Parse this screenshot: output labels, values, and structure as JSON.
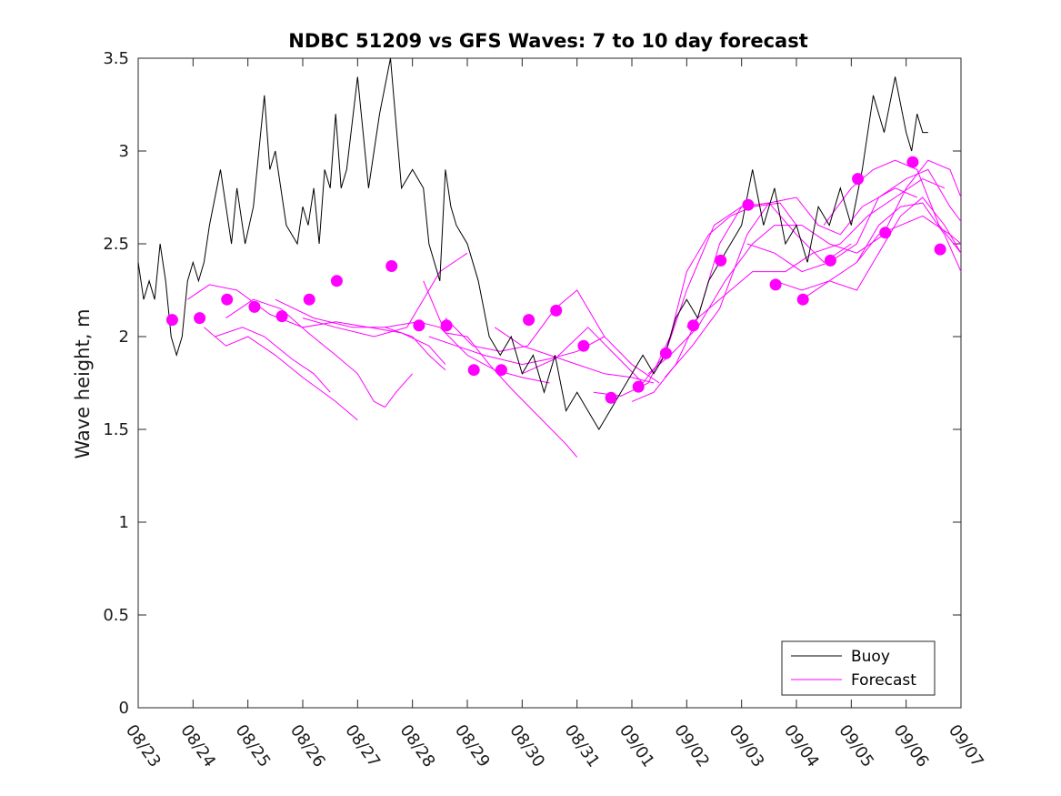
{
  "chart_data": {
    "type": "line",
    "title": "NDBC 51209 vs GFS Waves: 7 to 10 day forecast",
    "xlabel": "",
    "ylabel": "Wave height, m",
    "xlim": [
      0,
      15
    ],
    "ylim": [
      0,
      3.5
    ],
    "x_ticks": [
      0,
      1,
      2,
      3,
      4,
      5,
      6,
      7,
      8,
      9,
      10,
      11,
      12,
      13,
      14,
      15
    ],
    "x_tick_labels": [
      "08/23",
      "08/24",
      "08/25",
      "08/26",
      "08/27",
      "08/28",
      "08/29",
      "08/30",
      "08/31",
      "09/01",
      "09/02",
      "09/03",
      "09/04",
      "09/05",
      "09/06",
      "09/07"
    ],
    "y_ticks": [
      0,
      0.5,
      1,
      1.5,
      2,
      2.5,
      3,
      3.5
    ],
    "y_tick_labels": [
      "0",
      "0.5",
      "1",
      "1.5",
      "2",
      "2.5",
      "3",
      "3.5"
    ],
    "legend": {
      "position": "bottom-right",
      "entries": [
        {
          "label": "Buoy",
          "color": "#000000"
        },
        {
          "label": "Forecast",
          "color": "#ff00ff"
        }
      ]
    },
    "series": [
      {
        "name": "Buoy",
        "color": "#000000",
        "x": [
          0,
          0.1,
          0.2,
          0.3,
          0.4,
          0.5,
          0.6,
          0.7,
          0.8,
          0.9,
          1.0,
          1.1,
          1.2,
          1.3,
          1.5,
          1.7,
          1.8,
          1.95,
          2.1,
          2.3,
          2.4,
          2.5,
          2.7,
          2.9,
          3.0,
          3.1,
          3.2,
          3.3,
          3.4,
          3.5,
          3.6,
          3.7,
          3.8,
          4.0,
          4.2,
          4.3,
          4.4,
          4.6,
          4.8,
          5.0,
          5.2,
          5.3,
          5.5,
          5.6,
          5.7,
          5.8,
          6.0,
          6.2,
          6.4,
          6.6,
          6.8,
          7.0,
          7.2,
          7.4,
          7.6,
          7.8,
          8.0,
          8.2,
          8.4,
          8.6,
          8.8,
          9.0,
          9.2,
          9.4,
          9.6,
          9.8,
          10.0,
          10.2,
          10.4,
          10.6,
          10.8,
          11.0,
          11.2,
          11.4,
          11.6,
          11.8,
          12.0,
          12.2,
          12.4,
          12.6,
          12.8,
          13.0,
          13.2,
          13.4,
          13.6,
          13.8,
          14.0,
          14.1,
          14.2,
          14.3,
          14.4
        ],
        "values": [
          2.4,
          2.2,
          2.3,
          2.2,
          2.5,
          2.3,
          2.0,
          1.9,
          2.0,
          2.3,
          2.4,
          2.3,
          2.4,
          2.6,
          2.9,
          2.5,
          2.8,
          2.5,
          2.7,
          3.3,
          2.9,
          3.0,
          2.6,
          2.5,
          2.7,
          2.6,
          2.8,
          2.5,
          2.9,
          2.8,
          3.2,
          2.8,
          2.9,
          3.4,
          2.8,
          3.0,
          3.2,
          3.5,
          2.8,
          2.9,
          2.8,
          2.5,
          2.3,
          2.9,
          2.7,
          2.6,
          2.5,
          2.3,
          2.0,
          1.9,
          2.0,
          1.8,
          1.9,
          1.7,
          1.9,
          1.6,
          1.7,
          1.6,
          1.5,
          1.6,
          1.7,
          1.8,
          1.9,
          1.8,
          1.9,
          2.1,
          2.2,
          2.1,
          2.3,
          2.4,
          2.5,
          2.6,
          2.9,
          2.6,
          2.8,
          2.5,
          2.6,
          2.4,
          2.7,
          2.6,
          2.8,
          2.6,
          2.9,
          3.3,
          3.1,
          3.4,
          3.1,
          3.0,
          3.2,
          3.1,
          3.1
        ]
      },
      {
        "name": "Forecast",
        "color": "#ff00ff",
        "lines": [
          {
            "x": [
              0.9,
              1.3,
              1.8,
              2.4,
              3.0,
              3.6,
              4.2,
              4.8,
              5.3,
              5.6
            ],
            "values": [
              2.2,
              2.28,
              2.25,
              2.12,
              2.05,
              2.08,
              2.05,
              2.02,
              1.95,
              1.85
            ]
          },
          {
            "x": [
              1.2,
              1.6,
              2.0,
              2.5,
              3.0,
              3.6,
              4.0
            ],
            "values": [
              2.05,
              1.95,
              2.0,
              1.9,
              1.78,
              1.65,
              1.55
            ]
          },
          {
            "x": [
              1.4,
              1.9,
              2.3,
              2.8,
              3.2,
              3.5
            ],
            "values": [
              2.0,
              2.05,
              2.0,
              1.88,
              1.8,
              1.7
            ]
          },
          {
            "x": [
              1.6,
              2.1,
              2.6,
              3.1,
              3.6,
              4.0,
              4.3,
              4.5
            ],
            "values": [
              2.1,
              2.2,
              2.15,
              2.02,
              1.9,
              1.8,
              1.65,
              1.62
            ]
          },
          {
            "x": [
              4.5,
              4.7,
              5.0
            ],
            "values": [
              1.62,
              1.7,
              1.8
            ]
          },
          {
            "x": [
              2.5,
              3.2,
              3.9,
              4.5,
              5.0,
              5.3,
              5.6
            ],
            "values": [
              2.2,
              2.1,
              2.05,
              2.05,
              2.0,
              1.9,
              1.82
            ]
          },
          {
            "x": [
              3.0,
              3.6,
              4.3,
              4.9,
              5.2,
              5.5,
              6.0
            ],
            "values": [
              2.1,
              2.05,
              2.0,
              2.05,
              2.2,
              2.35,
              2.45
            ]
          },
          {
            "x": [
              4.5,
              5.1,
              5.5,
              6.0,
              6.5,
              7.0,
              7.5
            ],
            "values": [
              2.05,
              2.08,
              2.05,
              1.9,
              1.82,
              1.78,
              1.75
            ]
          },
          {
            "x": [
              5.2,
              5.6,
              6.0,
              6.4,
              6.8,
              7.2,
              7.8,
              8.0
            ],
            "values": [
              2.3,
              2.02,
              2.0,
              1.85,
              1.72,
              1.6,
              1.42,
              1.35
            ]
          },
          {
            "x": [
              5.3,
              5.8,
              6.3,
              7.0,
              7.5,
              8.0,
              8.5
            ],
            "values": [
              2.0,
              1.95,
              1.9,
              1.85,
              1.88,
              1.92,
              2.0
            ]
          },
          {
            "x": [
              5.6,
              6.1,
              6.6,
              7.1,
              7.6,
              8.0,
              8.5,
              9.0,
              9.5
            ],
            "values": [
              2.1,
              1.95,
              1.92,
              1.95,
              2.15,
              2.25,
              2.0,
              1.85,
              1.75
            ]
          },
          {
            "x": [
              6.5,
              7.0,
              7.5,
              8.0,
              8.5,
              9.0,
              9.4
            ],
            "values": [
              2.05,
              1.95,
              1.9,
              1.85,
              1.8,
              1.78,
              1.75
            ]
          },
          {
            "x": [
              7.0,
              7.6,
              8.2,
              8.7,
              9.2,
              9.6,
              10.0,
              10.5,
              11.0,
              11.5
            ],
            "values": [
              1.8,
              1.88,
              2.05,
              1.9,
              1.75,
              1.9,
              2.25,
              2.6,
              2.7,
              2.72
            ]
          },
          {
            "x": [
              8.3,
              8.8,
              9.3,
              9.7,
              10.0,
              10.4,
              10.8,
              11.2,
              11.7,
              12.0
            ],
            "values": [
              1.7,
              1.68,
              1.75,
              2.0,
              2.35,
              2.55,
              2.65,
              2.7,
              2.72,
              2.6
            ]
          },
          {
            "x": [
              9.0,
              9.4,
              9.8,
              10.2,
              10.6,
              11.0,
              11.5,
              12.0,
              12.5,
              13.0
            ],
            "values": [
              1.65,
              1.7,
              1.85,
              2.1,
              2.5,
              2.7,
              2.72,
              2.55,
              2.4,
              2.5
            ]
          },
          {
            "x": [
              9.3,
              9.7,
              10.2,
              10.7,
              11.2,
              11.6,
              12.1,
              12.6,
              13.1,
              13.6
            ],
            "values": [
              1.8,
              1.9,
              2.05,
              2.3,
              2.5,
              2.6,
              2.6,
              2.5,
              2.45,
              2.55
            ]
          },
          {
            "x": [
              9.6,
              10.1,
              10.6,
              11.1,
              11.5,
              12.0,
              12.4,
              12.8,
              13.2,
              13.8,
              14.2
            ],
            "values": [
              1.78,
              1.95,
              2.15,
              2.55,
              2.72,
              2.75,
              2.6,
              2.55,
              2.7,
              2.8,
              2.75
            ]
          },
          {
            "x": [
              10.0,
              10.6,
              11.2,
              11.8,
              12.3,
              12.8,
              13.3,
              13.8,
              14.3,
              14.7
            ],
            "values": [
              2.05,
              2.2,
              2.35,
              2.35,
              2.45,
              2.5,
              2.65,
              2.75,
              2.85,
              2.8
            ]
          },
          {
            "x": [
              11.1,
              11.6,
              12.1,
              12.6,
              13.1,
              13.5,
              14.0,
              14.4,
              14.8,
              15.0
            ],
            "values": [
              2.5,
              2.45,
              2.35,
              2.4,
              2.5,
              2.75,
              2.85,
              2.9,
              2.7,
              2.62
            ]
          },
          {
            "x": [
              11.6,
              12.1,
              12.6,
              13.1,
              13.5,
              13.9,
              14.3,
              14.8,
              15.0
            ],
            "values": [
              2.3,
              2.25,
              2.3,
              2.4,
              2.55,
              2.6,
              2.65,
              2.55,
              2.5
            ]
          },
          {
            "x": [
              12.1,
              12.6,
              13.1,
              13.5,
              13.9,
              14.3,
              14.7,
              15.0
            ],
            "values": [
              2.2,
              2.3,
              2.25,
              2.45,
              2.65,
              2.75,
              2.6,
              2.45
            ]
          },
          {
            "x": [
              12.5,
              13.0,
              13.4,
              13.8,
              14.2,
              14.6,
              15.0
            ],
            "values": [
              2.6,
              2.8,
              2.9,
              2.95,
              2.9,
              2.6,
              2.45
            ]
          },
          {
            "x": [
              13.1,
              13.5,
              13.9,
              14.3,
              14.7,
              15.0
            ],
            "values": [
              2.4,
              2.6,
              2.7,
              2.72,
              2.55,
              2.35
            ]
          },
          {
            "x": [
              13.6,
              14.0,
              14.4,
              14.8,
              15.0
            ],
            "values": [
              2.56,
              2.8,
              2.95,
              2.9,
              2.75
            ]
          }
        ],
        "markers": {
          "x": [
            0.62,
            1.12,
            1.62,
            2.12,
            2.62,
            3.12,
            3.62,
            4.62,
            5.12,
            5.62,
            6.12,
            6.62,
            7.12,
            7.62,
            8.12,
            8.62,
            9.12,
            9.62,
            10.12,
            10.62,
            11.12,
            11.62,
            12.12,
            12.62,
            13.12,
            13.62,
            14.12,
            14.62
          ],
          "values": [
            2.09,
            2.1,
            2.2,
            2.16,
            2.11,
            2.2,
            2.3,
            2.38,
            2.06,
            2.06,
            1.82,
            1.82,
            2.09,
            2.14,
            1.95,
            1.67,
            1.73,
            1.91,
            2.06,
            2.41,
            2.71,
            2.28,
            2.2,
            2.41,
            2.85,
            2.56,
            2.94,
            2.47
          ]
        }
      }
    ]
  }
}
